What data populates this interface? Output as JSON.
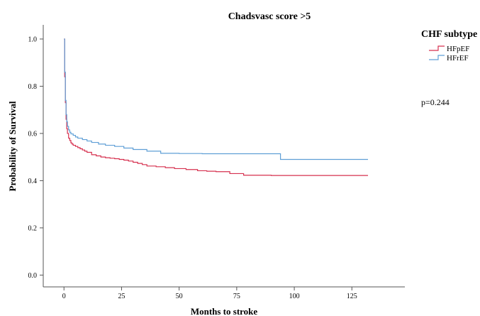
{
  "chart_data": {
    "type": "line",
    "title": "Chadsvasc score >5",
    "xlabel": "Months to stroke",
    "ylabel": "Probability of Survival",
    "xlim": [
      -9,
      148
    ],
    "ylim": [
      -0.05,
      1.06
    ],
    "x_ticks": [
      0,
      25,
      50,
      75,
      100,
      125
    ],
    "y_ticks": [
      0.0,
      0.2,
      0.4,
      0.6,
      0.8,
      1.0
    ],
    "y_tick_labels": [
      "0.0",
      "0.2",
      "0.4",
      "0.6",
      "0.8",
      "1.0"
    ],
    "legend": {
      "title": "CHF subtype",
      "position": "top-right"
    },
    "annotation": "p=0.244",
    "step": true,
    "series": [
      {
        "name": "HFpEF",
        "color": "#d6304f",
        "x": [
          0,
          0.3,
          0.6,
          0.9,
          1.2,
          1.5,
          2,
          2.5,
          3,
          3.5,
          4,
          5,
          6,
          7,
          8,
          9,
          10,
          12,
          14,
          16,
          18,
          20,
          22,
          24,
          26,
          28,
          30,
          32,
          34,
          36,
          40,
          44,
          48,
          53,
          58,
          62,
          66,
          72,
          78,
          90,
          132
        ],
        "y": [
          1.0,
          0.84,
          0.73,
          0.66,
          0.62,
          0.6,
          0.58,
          0.57,
          0.56,
          0.555,
          0.55,
          0.545,
          0.54,
          0.535,
          0.53,
          0.525,
          0.52,
          0.51,
          0.505,
          0.5,
          0.497,
          0.495,
          0.493,
          0.49,
          0.487,
          0.483,
          0.478,
          0.473,
          0.468,
          0.462,
          0.459,
          0.455,
          0.451,
          0.447,
          0.442,
          0.44,
          0.438,
          0.43,
          0.423,
          0.422,
          0.422
        ]
      },
      {
        "name": "HFrEF",
        "color": "#5f9fd6",
        "x": [
          0,
          0.3,
          0.6,
          0.9,
          1.2,
          1.5,
          2,
          2.5,
          3,
          4,
          5,
          6,
          8,
          10,
          12,
          15,
          18,
          22,
          26,
          30,
          36,
          42,
          50,
          60,
          70,
          80,
          94,
          132
        ],
        "y": [
          1.0,
          0.86,
          0.74,
          0.68,
          0.65,
          0.63,
          0.615,
          0.605,
          0.598,
          0.592,
          0.585,
          0.58,
          0.574,
          0.568,
          0.562,
          0.555,
          0.55,
          0.545,
          0.538,
          0.532,
          0.525,
          0.516,
          0.515,
          0.514,
          0.514,
          0.514,
          0.49,
          0.49
        ]
      }
    ]
  }
}
